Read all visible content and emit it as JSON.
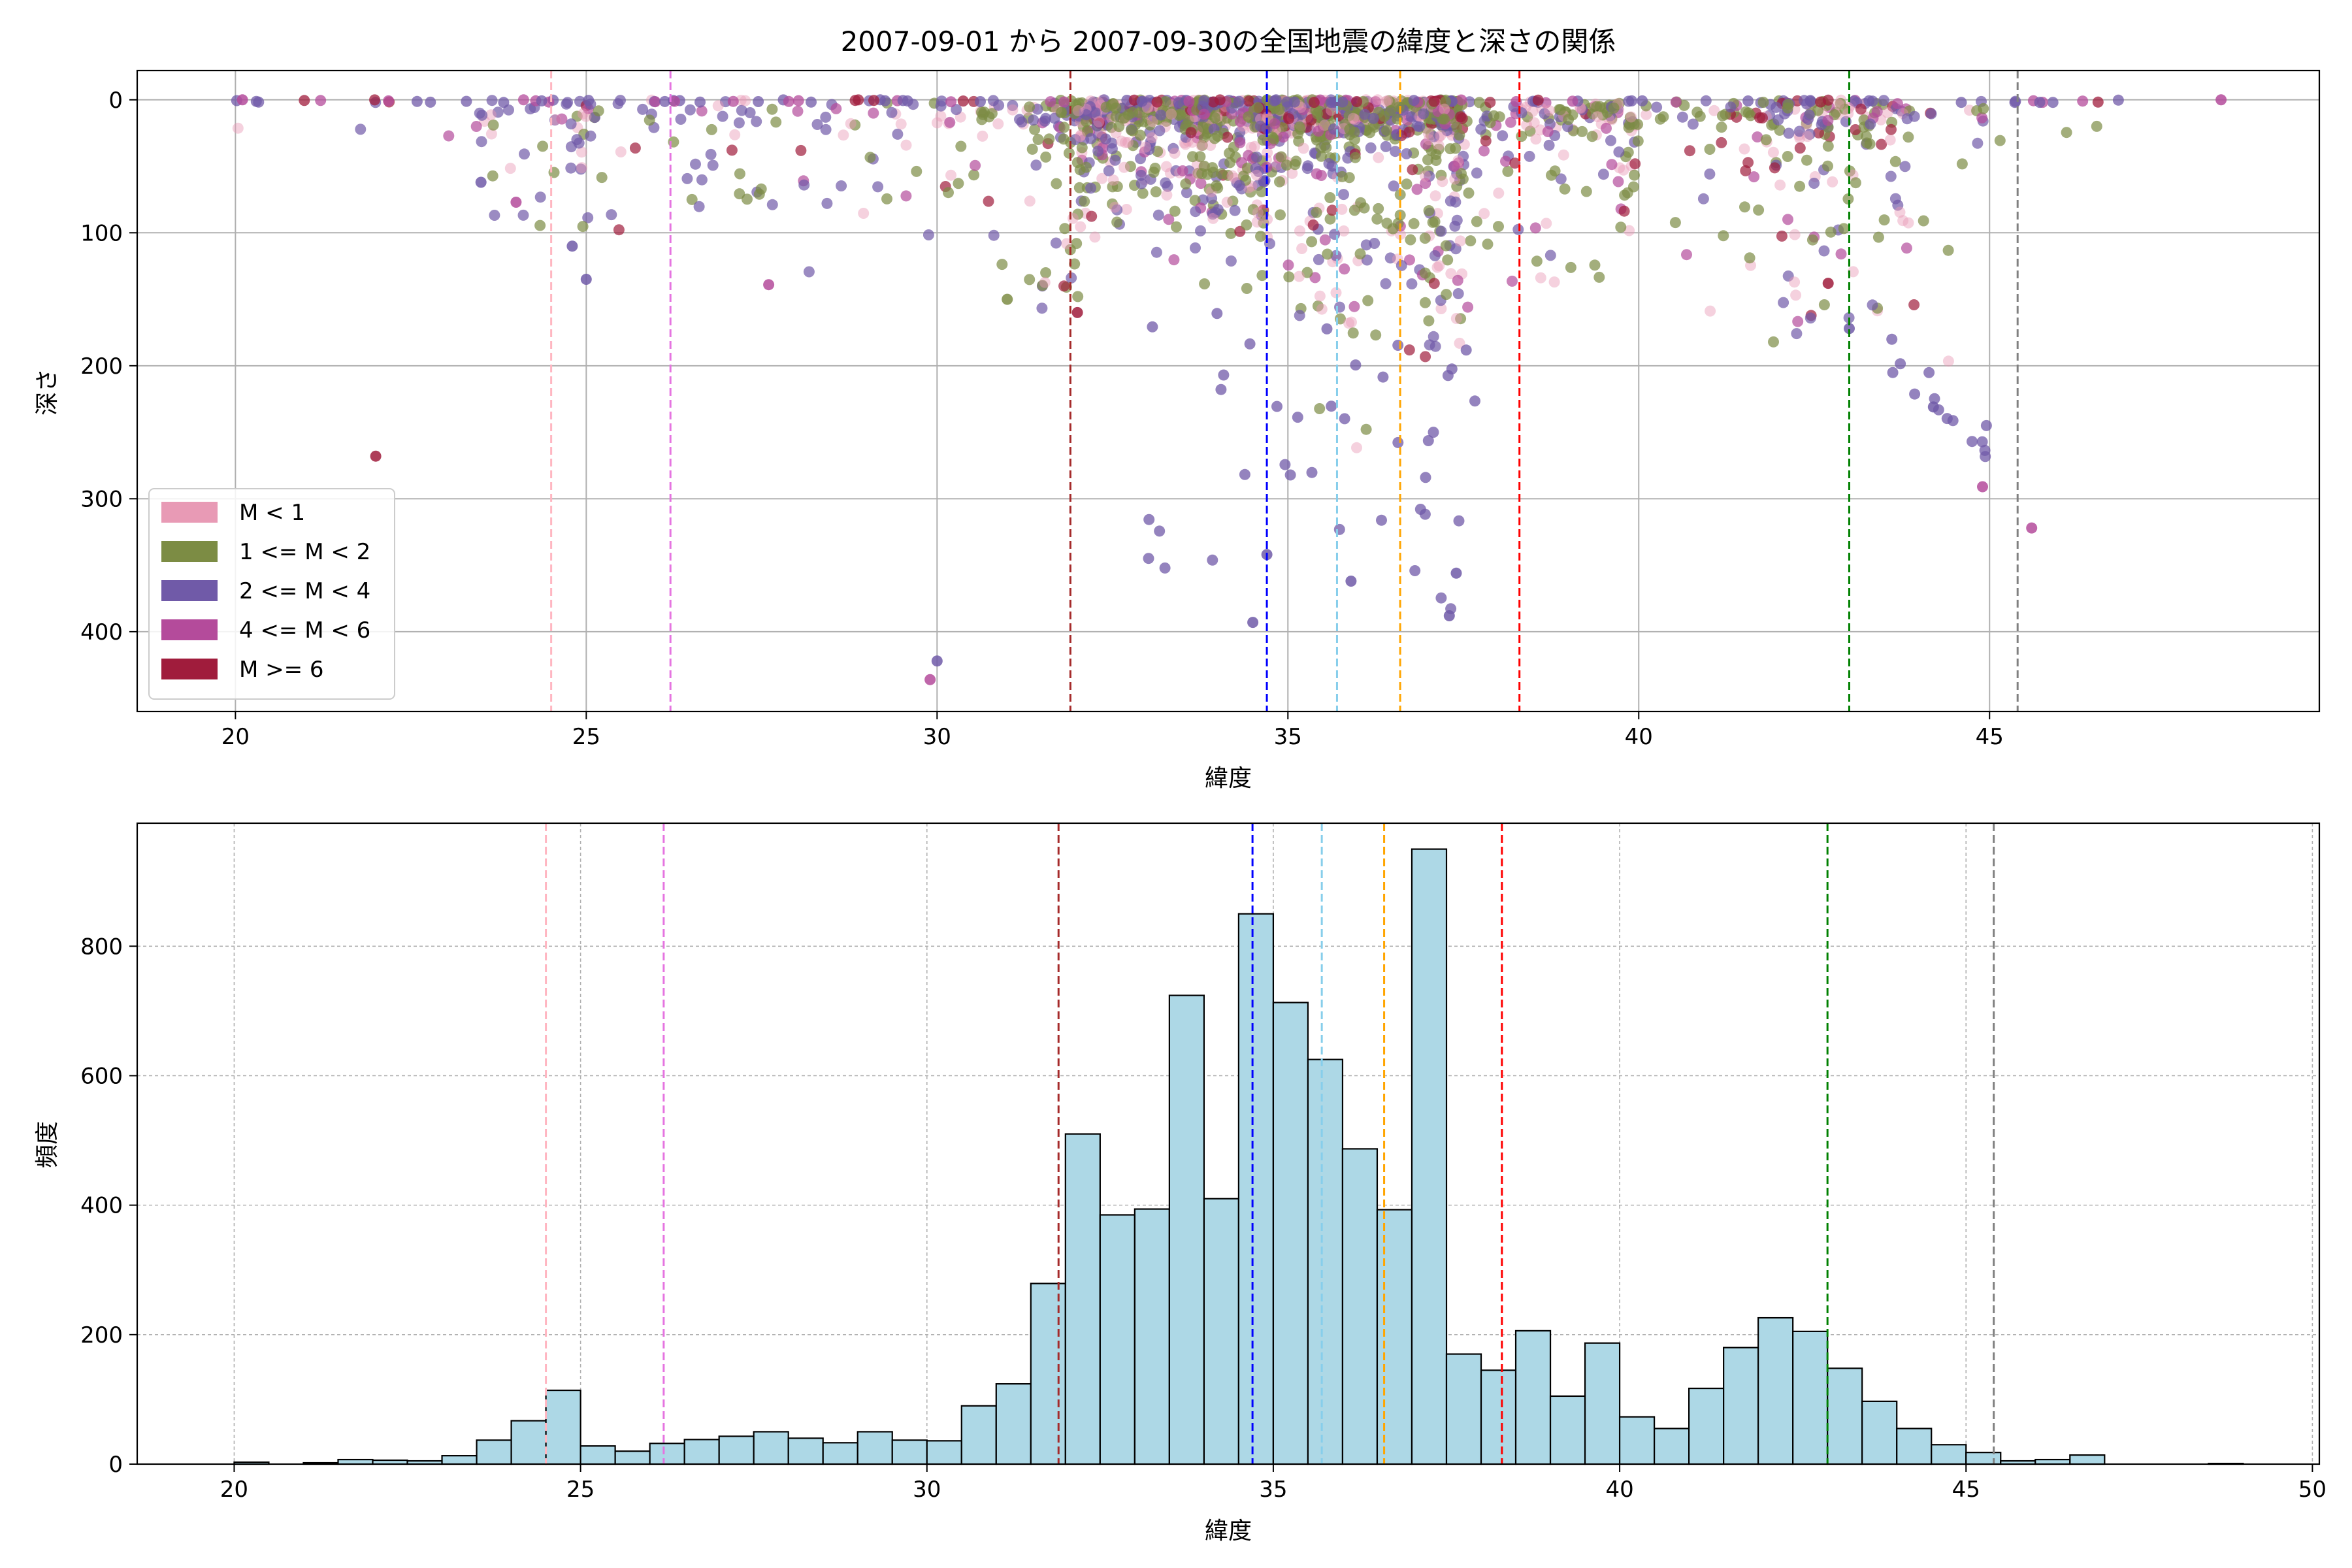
{
  "chart_data": [
    {
      "type": "scatter",
      "title": "2007-09-01 から 2007-09-30の全国地震の緯度と深さの関係",
      "xlabel": "緯度",
      "ylabel": "深さ",
      "xlim": [
        18.6,
        49.7
      ],
      "ylim": [
        460,
        -22
      ],
      "y_inverted": true,
      "xticks": [
        "20",
        "25",
        "30",
        "35",
        "40",
        "45"
      ],
      "yticks": [
        "0",
        "100",
        "200",
        "300",
        "400"
      ],
      "grid": true,
      "legend": {
        "placement": "lower-left",
        "entries": [
          {
            "label": "M < 1",
            "color": "#e89ab5"
          },
          {
            "label": "1 <= M < 2",
            "color": "#7c8c44"
          },
          {
            "label": "2 <= M < 4",
            "color": "#705aa8"
          },
          {
            "label": "4 <= M < 6",
            "color": "#b44b9b"
          },
          {
            "label": "M >= 6",
            "color": "#a01c3c"
          }
        ]
      },
      "vlines": [
        {
          "x": 24.5,
          "color": "#ffb6c1"
        },
        {
          "x": 26.2,
          "color": "#e574e0"
        },
        {
          "x": 31.9,
          "color": "#a52a2a"
        },
        {
          "x": 34.7,
          "color": "#0000ff"
        },
        {
          "x": 35.7,
          "color": "#87ceeb"
        },
        {
          "x": 36.6,
          "color": "#ffa500"
        },
        {
          "x": 38.3,
          "color": "#ff0000"
        },
        {
          "x": 43.0,
          "color": "#008000"
        },
        {
          "x": 45.4,
          "color": "#808080"
        }
      ],
      "points_sample": [
        {
          "x": 20.1,
          "y": 0,
          "m": "4 <= M < 6"
        },
        {
          "x": 22.0,
          "y": 268,
          "m": "M >= 6"
        },
        {
          "x": 23.5,
          "y": 62,
          "m": "2 <= M < 4"
        },
        {
          "x": 24.0,
          "y": 77,
          "m": "4 <= M < 6"
        },
        {
          "x": 24.8,
          "y": 110,
          "m": "2 <= M < 4"
        },
        {
          "x": 25.0,
          "y": 135,
          "m": "2 <= M < 4"
        },
        {
          "x": 27.6,
          "y": 139,
          "m": "4 <= M < 6"
        },
        {
          "x": 29.9,
          "y": 436,
          "m": "4 <= M < 6"
        },
        {
          "x": 30.0,
          "y": 422,
          "m": "2 <= M < 4"
        },
        {
          "x": 31.0,
          "y": 150,
          "m": "1 <= M < 2"
        },
        {
          "x": 32.0,
          "y": 160,
          "m": "M >= 6"
        },
        {
          "x": 34.5,
          "y": 393,
          "m": "2 <= M < 4"
        },
        {
          "x": 34.7,
          "y": 342,
          "m": "2 <= M < 4"
        },
        {
          "x": 35.9,
          "y": 362,
          "m": "2 <= M < 4"
        },
        {
          "x": 37.3,
          "y": 388,
          "m": "2 <= M < 4"
        },
        {
          "x": 37.4,
          "y": 356,
          "m": "2 <= M < 4"
        },
        {
          "x": 42.7,
          "y": 138,
          "m": "M >= 6"
        },
        {
          "x": 43.0,
          "y": 172,
          "m": "2 <= M < 4"
        },
        {
          "x": 44.2,
          "y": 231,
          "m": "2 <= M < 4"
        },
        {
          "x": 44.9,
          "y": 291,
          "m": "4 <= M < 6"
        },
        {
          "x": 45.6,
          "y": 322,
          "m": "4 <= M < 6"
        },
        {
          "x": 48.3,
          "y": 0,
          "m": "4 <= M < 6"
        }
      ]
    },
    {
      "type": "bar",
      "subtype": "histogram",
      "title": "",
      "xlabel": "緯度",
      "ylabel": "頻度",
      "xlim": [
        18.6,
        50.1
      ],
      "ylim": [
        0,
        990
      ],
      "xticks": [
        "20",
        "25",
        "30",
        "35",
        "40",
        "45",
        "50"
      ],
      "yticks": [
        "0",
        "200",
        "400",
        "600",
        "800"
      ],
      "grid": true,
      "bar_color": "#add8e6",
      "bin_start": 20.0,
      "bin_width": 0.5,
      "values": [
        3,
        0,
        2,
        7,
        6,
        5,
        13,
        37,
        67,
        114,
        28,
        20,
        32,
        38,
        43,
        50,
        40,
        33,
        50,
        37,
        36,
        90,
        124,
        279,
        510,
        385,
        394,
        724,
        410,
        850,
        713,
        625,
        487,
        393,
        950,
        170,
        145,
        206,
        105,
        187,
        73,
        55,
        117,
        180,
        226,
        205,
        148,
        97,
        55,
        30,
        18,
        5,
        7,
        14,
        0,
        0,
        0,
        1,
        0,
        0
      ],
      "vlines": [
        {
          "x": 24.5,
          "color": "#ffb6c1"
        },
        {
          "x": 26.2,
          "color": "#e574e0"
        },
        {
          "x": 31.9,
          "color": "#a52a2a"
        },
        {
          "x": 34.7,
          "color": "#0000ff"
        },
        {
          "x": 35.7,
          "color": "#87ceeb"
        },
        {
          "x": 36.6,
          "color": "#ffa500"
        },
        {
          "x": 38.3,
          "color": "#ff0000"
        },
        {
          "x": 43.0,
          "color": "#008000"
        },
        {
          "x": 45.4,
          "color": "#808080"
        }
      ]
    }
  ]
}
